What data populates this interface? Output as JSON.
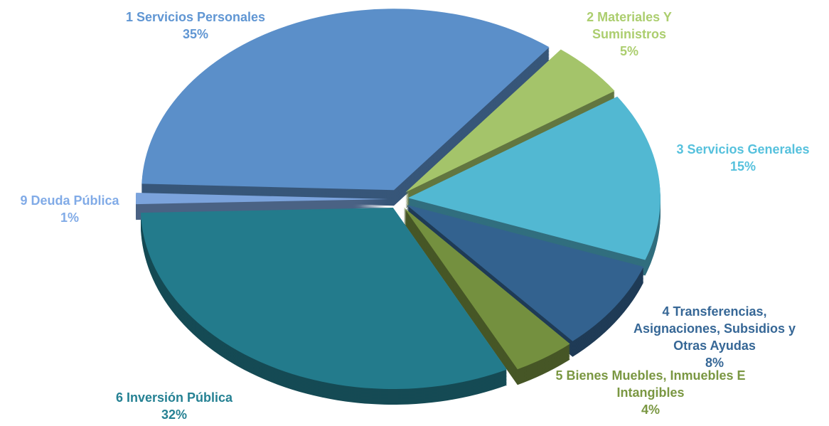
{
  "chart_data": {
    "type": "pie",
    "categories": [
      "1 Servicios Personales",
      "2 Materiales Y Suministros",
      "3 Servicios Generales",
      "4 Transferencias, Asignaciones, Subsidios y Otras Ayudas",
      "5 Bienes Muebles, Inmuebles E Intangibles",
      "6 Inversión Pública",
      "9 Deuda Pública"
    ],
    "values": [
      35,
      5,
      15,
      8,
      4,
      32,
      1
    ],
    "value_labels": [
      "35%",
      "5%",
      "15%",
      "8%",
      "4%",
      "32%",
      "1%"
    ],
    "colors": [
      "#5b8fc9",
      "#a4c46a",
      "#52b8d2",
      "#33628f",
      "#74903f",
      "#237b8c",
      "#7ba3dc"
    ]
  }
}
